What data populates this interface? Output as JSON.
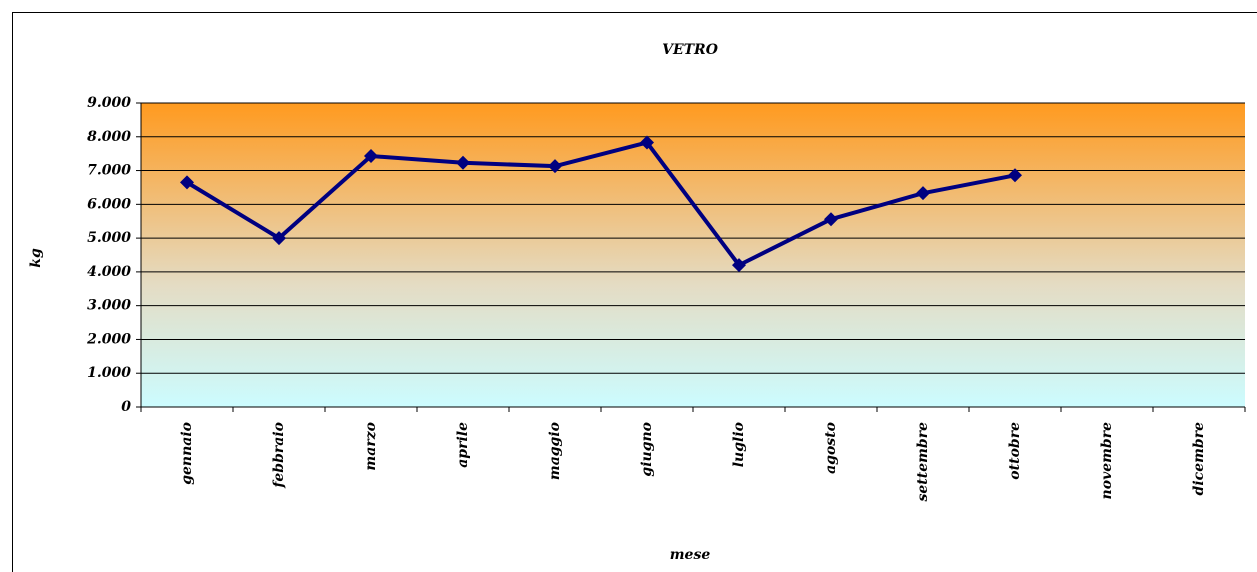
{
  "chart_data": {
    "type": "line",
    "title": "VETRO",
    "x_label": "mese",
    "y_label": "kg",
    "categories": [
      "gennaio",
      "febbraio",
      "marzo",
      "aprile",
      "maggio",
      "giugno",
      "luglio",
      "agosto",
      "settembre",
      "ottobre",
      "novembre",
      "dicembre"
    ],
    "series": [
      {
        "name": "VETRO",
        "color": "#000080",
        "values": [
          6650,
          5000,
          7430,
          7230,
          7130,
          7830,
          4200,
          5560,
          6330,
          6860,
          null,
          null
        ]
      }
    ],
    "ylim": [
      0,
      9000
    ],
    "yticks": [
      0,
      {
        "value": 1000,
        "label": "1.000"
      },
      {
        "value": 2000,
        "label": "2.000"
      },
      {
        "value": 3000,
        "label": "3.000"
      },
      {
        "value": 4000,
        "label": "4.000"
      },
      {
        "value": 5000,
        "label": "5.000"
      },
      {
        "value": 6000,
        "label": "6.000"
      },
      {
        "value": 7000,
        "label": "7.000"
      },
      {
        "value": 8000,
        "label": "8.000"
      },
      {
        "value": 9000,
        "label": "9.000"
      }
    ],
    "grid": true
  }
}
